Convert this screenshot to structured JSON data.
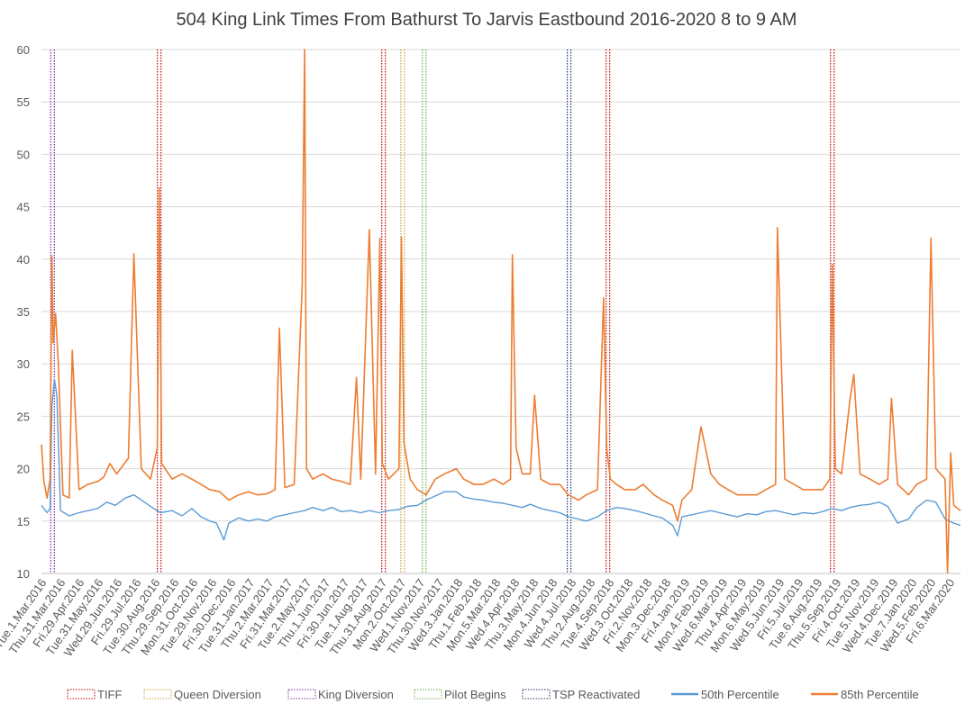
{
  "chart_data": {
    "type": "line",
    "title": "504 King Link Times From Bathurst To Jarvis Eastbound 2016-2020 8 to 9 AM",
    "xlabel": "",
    "ylabel": "",
    "ylim": [
      10,
      60
    ],
    "y_ticks": [
      10,
      15,
      20,
      25,
      30,
      35,
      40,
      45,
      50,
      55,
      60
    ],
    "x_range": [
      "2016-03-01",
      "2020-03-31"
    ],
    "x_tick_labels": [
      "Tue.1.Mar.2016",
      "Thu.31.Mar.2016",
      "Fri.29.Apr.2016",
      "Tue.31.May.2016",
      "Wed.29.Jun.2016",
      "Fri.29.Jul.2016",
      "Tue.30.Aug.2016",
      "Thu.29.Sep.2016",
      "Mon.31.Oct.2016",
      "Tue.29.Nov.2016",
      "Fri.30.Dec.2016",
      "Tue.31.Jan.2017",
      "Thu.2.Mar.2017",
      "Fri.31.Mar.2017",
      "Tue.2.May.2017",
      "Thu.1.Jun.2017",
      "Fri.30.Jun.2017",
      "Tue.1.Aug.2017",
      "Thu.31.Aug.2017",
      "Mon.2.Oct.2017",
      "Wed.1.Nov.2017",
      "Thu.30.Nov.2017",
      "Wed.3.Jan.2018",
      "Thu.1.Feb.2018",
      "Mon.5.Mar.2018",
      "Wed.4.Apr.2018",
      "Thu.3.May.2018",
      "Mon.4.Jun.2018",
      "Wed.4.Jul.2018",
      "Thu.2.Aug.2018",
      "Tue.4.Sep.2018",
      "Wed.3.Oct.2018",
      "Fri.2.Nov.2018",
      "Mon.3.Dec.2018",
      "Fri.4.Jan.2019",
      "Mon.4.Feb.2019",
      "Wed.6.Mar.2019",
      "Thu.4.Apr.2019",
      "Mon.6.May.2019",
      "Wed.5.Jun.2019",
      "Fri.5.Jul.2019",
      "Tue.6.Aug.2019",
      "Thu.5.Sep.2019",
      "Fri.4.Oct.2019",
      "Tue.5.Nov.2019",
      "Wed.4.Dec.2019",
      "Tue.7.Jan.2020",
      "Wed.5.Feb.2020",
      "Fri.6.Mar.2020"
    ],
    "grid": true,
    "legend_position": "bottom",
    "event_markers": [
      {
        "name": "TIFF",
        "color": "#c00000",
        "dates": [
          "2016-09-08",
          "2017-09-07",
          "2018-09-06",
          "2019-09-05"
        ]
      },
      {
        "name": "Queen Diversion",
        "color": "#c9a13b",
        "dates": [
          "2017-10-08"
        ]
      },
      {
        "name": "King Diversion",
        "color": "#7030a0",
        "dates": [
          "2016-03-19"
        ]
      },
      {
        "name": "Pilot Begins",
        "color": "#70ad47",
        "dates": [
          "2017-11-12"
        ]
      },
      {
        "name": "TSP Reactivated",
        "color": "#1f3864",
        "dates": [
          "2018-07-05"
        ]
      }
    ],
    "series": [
      {
        "name": "50th Percentile",
        "color": "#5b9bd5",
        "x": [
          "2016-03-01",
          "2016-03-10",
          "2016-03-15",
          "2016-03-18",
          "2016-03-22",
          "2016-03-26",
          "2016-04-01",
          "2016-04-15",
          "2016-05-01",
          "2016-05-31",
          "2016-06-15",
          "2016-06-29",
          "2016-07-15",
          "2016-07-29",
          "2016-08-15",
          "2016-08-30",
          "2016-09-10",
          "2016-09-29",
          "2016-10-15",
          "2016-10-31",
          "2016-11-15",
          "2016-11-29",
          "2016-12-10",
          "2016-12-22",
          "2016-12-30",
          "2017-01-15",
          "2017-01-31",
          "2017-02-15",
          "2017-03-02",
          "2017-03-15",
          "2017-03-31",
          "2017-04-15",
          "2017-05-02",
          "2017-05-15",
          "2017-06-01",
          "2017-06-15",
          "2017-06-30",
          "2017-07-15",
          "2017-08-01",
          "2017-08-15",
          "2017-08-31",
          "2017-09-15",
          "2017-10-02",
          "2017-10-15",
          "2017-11-01",
          "2017-11-15",
          "2017-11-30",
          "2017-12-15",
          "2018-01-03",
          "2018-01-15",
          "2018-02-01",
          "2018-02-15",
          "2018-03-05",
          "2018-03-20",
          "2018-04-04",
          "2018-04-20",
          "2018-05-03",
          "2018-05-20",
          "2018-06-04",
          "2018-06-20",
          "2018-07-04",
          "2018-07-20",
          "2018-08-02",
          "2018-08-20",
          "2018-09-04",
          "2018-09-20",
          "2018-10-03",
          "2018-10-20",
          "2018-11-02",
          "2018-11-20",
          "2018-12-03",
          "2018-12-20",
          "2018-12-28",
          "2019-01-04",
          "2019-01-20",
          "2019-02-04",
          "2019-02-20",
          "2019-03-06",
          "2019-03-20",
          "2019-04-04",
          "2019-04-20",
          "2019-05-06",
          "2019-05-20",
          "2019-06-05",
          "2019-06-20",
          "2019-07-05",
          "2019-07-20",
          "2019-08-06",
          "2019-08-20",
          "2019-09-05",
          "2019-09-20",
          "2019-10-04",
          "2019-10-20",
          "2019-11-05",
          "2019-11-20",
          "2019-12-04",
          "2019-12-20",
          "2020-01-07",
          "2020-01-20",
          "2020-02-05",
          "2020-02-20",
          "2020-03-06",
          "2020-03-20",
          "2020-03-31"
        ],
        "values": [
          16.5,
          15.8,
          16.2,
          26.0,
          28.5,
          27.0,
          16.0,
          15.5,
          15.8,
          16.2,
          16.8,
          16.5,
          17.2,
          17.5,
          16.8,
          16.2,
          15.8,
          16.0,
          15.5,
          16.2,
          15.4,
          15.0,
          14.8,
          13.2,
          14.8,
          15.3,
          15.0,
          15.2,
          15.0,
          15.4,
          15.6,
          15.8,
          16.0,
          16.3,
          16.0,
          16.3,
          15.9,
          16.0,
          15.8,
          16.0,
          15.8,
          16.0,
          16.1,
          16.4,
          16.5,
          17.0,
          17.4,
          17.8,
          17.8,
          17.3,
          17.1,
          17.0,
          16.8,
          16.7,
          16.5,
          16.3,
          16.6,
          16.2,
          16.0,
          15.8,
          15.4,
          15.2,
          15.0,
          15.4,
          16.0,
          16.3,
          16.2,
          16.0,
          15.8,
          15.5,
          15.3,
          14.6,
          13.6,
          15.4,
          15.6,
          15.8,
          16.0,
          15.8,
          15.6,
          15.4,
          15.7,
          15.6,
          15.9,
          16.0,
          15.8,
          15.6,
          15.8,
          15.7,
          15.9,
          16.2,
          16.0,
          16.3,
          16.5,
          16.6,
          16.8,
          16.4,
          14.8,
          15.2,
          16.3,
          17.0,
          16.8,
          15.2,
          14.8,
          14.6
        ]
      },
      {
        "name": "85th Percentile",
        "color": "#ed7d31",
        "x": [
          "2016-03-01",
          "2016-03-05",
          "2016-03-10",
          "2016-03-15",
          "2016-03-18",
          "2016-03-20",
          "2016-03-24",
          "2016-03-28",
          "2016-04-05",
          "2016-04-15",
          "2016-04-20",
          "2016-05-01",
          "2016-05-15",
          "2016-06-01",
          "2016-06-10",
          "2016-06-20",
          "2016-07-01",
          "2016-07-20",
          "2016-07-29",
          "2016-08-10",
          "2016-08-25",
          "2016-09-05",
          "2016-09-08",
          "2016-09-12",
          "2016-09-29",
          "2016-10-15",
          "2016-10-31",
          "2016-11-15",
          "2016-11-29",
          "2016-12-15",
          "2016-12-30",
          "2017-01-15",
          "2017-01-31",
          "2017-02-15",
          "2017-03-02",
          "2017-03-15",
          "2017-03-22",
          "2017-03-31",
          "2017-04-15",
          "2017-04-28",
          "2017-05-02",
          "2017-05-05",
          "2017-05-15",
          "2017-06-01",
          "2017-06-15",
          "2017-06-30",
          "2017-07-15",
          "2017-07-25",
          "2017-08-01",
          "2017-08-15",
          "2017-08-25",
          "2017-09-01",
          "2017-09-05",
          "2017-09-15",
          "2017-10-02",
          "2017-10-06",
          "2017-10-10",
          "2017-10-20",
          "2017-11-01",
          "2017-11-15",
          "2017-11-30",
          "2017-12-15",
          "2018-01-03",
          "2018-01-15",
          "2018-02-01",
          "2018-02-15",
          "2018-03-05",
          "2018-03-20",
          "2018-04-01",
          "2018-04-04",
          "2018-04-10",
          "2018-04-20",
          "2018-05-03",
          "2018-05-10",
          "2018-05-20",
          "2018-06-04",
          "2018-06-20",
          "2018-07-04",
          "2018-07-20",
          "2018-08-02",
          "2018-08-20",
          "2018-08-30",
          "2018-09-04",
          "2018-09-10",
          "2018-09-20",
          "2018-10-03",
          "2018-10-20",
          "2018-11-02",
          "2018-11-20",
          "2018-12-03",
          "2018-12-20",
          "2018-12-28",
          "2019-01-04",
          "2019-01-20",
          "2019-02-04",
          "2019-02-20",
          "2019-03-06",
          "2019-03-20",
          "2019-04-04",
          "2019-04-20",
          "2019-05-06",
          "2019-05-20",
          "2019-06-05",
          "2019-06-08",
          "2019-06-20",
          "2019-07-05",
          "2019-07-20",
          "2019-08-06",
          "2019-08-20",
          "2019-09-01",
          "2019-09-05",
          "2019-09-10",
          "2019-09-20",
          "2019-10-04",
          "2019-10-10",
          "2019-10-20",
          "2019-11-05",
          "2019-11-20",
          "2019-12-04",
          "2019-12-10",
          "2019-12-20",
          "2020-01-07",
          "2020-01-20",
          "2020-02-05",
          "2020-02-12",
          "2020-02-20",
          "2020-03-06",
          "2020-03-10",
          "2020-03-15",
          "2020-03-20",
          "2020-03-31"
        ],
        "values": [
          22.3,
          18.8,
          17.2,
          19.0,
          40.3,
          32.0,
          34.8,
          30.5,
          17.5,
          17.2,
          31.3,
          18.0,
          18.5,
          18.8,
          19.2,
          20.5,
          19.5,
          21.0,
          40.5,
          20.0,
          19.0,
          22.0,
          46.8,
          20.5,
          19.0,
          19.5,
          19.0,
          18.5,
          18.0,
          17.8,
          17.0,
          17.5,
          17.8,
          17.5,
          17.6,
          18.0,
          33.4,
          18.2,
          18.5,
          37.5,
          60.0,
          20.0,
          19.0,
          19.5,
          19.0,
          18.8,
          18.5,
          28.7,
          19.0,
          42.8,
          19.5,
          42.0,
          20.5,
          19.0,
          20.0,
          42.1,
          22.5,
          19.0,
          18.0,
          17.5,
          19.0,
          19.5,
          20.0,
          19.0,
          18.5,
          18.5,
          19.0,
          18.5,
          19.0,
          40.4,
          22.0,
          19.5,
          19.5,
          27.0,
          19.0,
          18.5,
          18.5,
          17.5,
          17.0,
          17.5,
          18.0,
          36.3,
          22.0,
          19.0,
          18.5,
          18.0,
          18.0,
          18.5,
          17.5,
          17.0,
          16.5,
          15.0,
          17.0,
          18.0,
          24.0,
          19.5,
          18.5,
          18.0,
          17.5,
          17.5,
          17.5,
          18.0,
          18.5,
          43.0,
          19.0,
          18.5,
          18.0,
          18.0,
          18.0,
          19.0,
          39.5,
          20.0,
          19.5,
          26.7,
          29.0,
          19.5,
          19.0,
          18.5,
          19.0,
          26.7,
          18.5,
          17.5,
          18.5,
          19.0,
          42.0,
          20.0,
          19.0,
          10.0,
          21.5,
          16.5,
          16.0
        ]
      }
    ]
  },
  "legend": [
    {
      "label": "TIFF",
      "kind": "dotted",
      "color": "#c00000"
    },
    {
      "label": "Queen Diversion",
      "kind": "dotted",
      "color": "#c9a13b"
    },
    {
      "label": "King Diversion",
      "kind": "dotted",
      "color": "#7030a0"
    },
    {
      "label": "Pilot Begins",
      "kind": "dotted",
      "color": "#70ad47"
    },
    {
      "label": "TSP Reactivated",
      "kind": "dotted",
      "color": "#1f3864"
    },
    {
      "label": "50th Percentile",
      "kind": "line",
      "color": "#5b9bd5"
    },
    {
      "label": "85th Percentile",
      "kind": "line",
      "color": "#ed7d31"
    }
  ]
}
